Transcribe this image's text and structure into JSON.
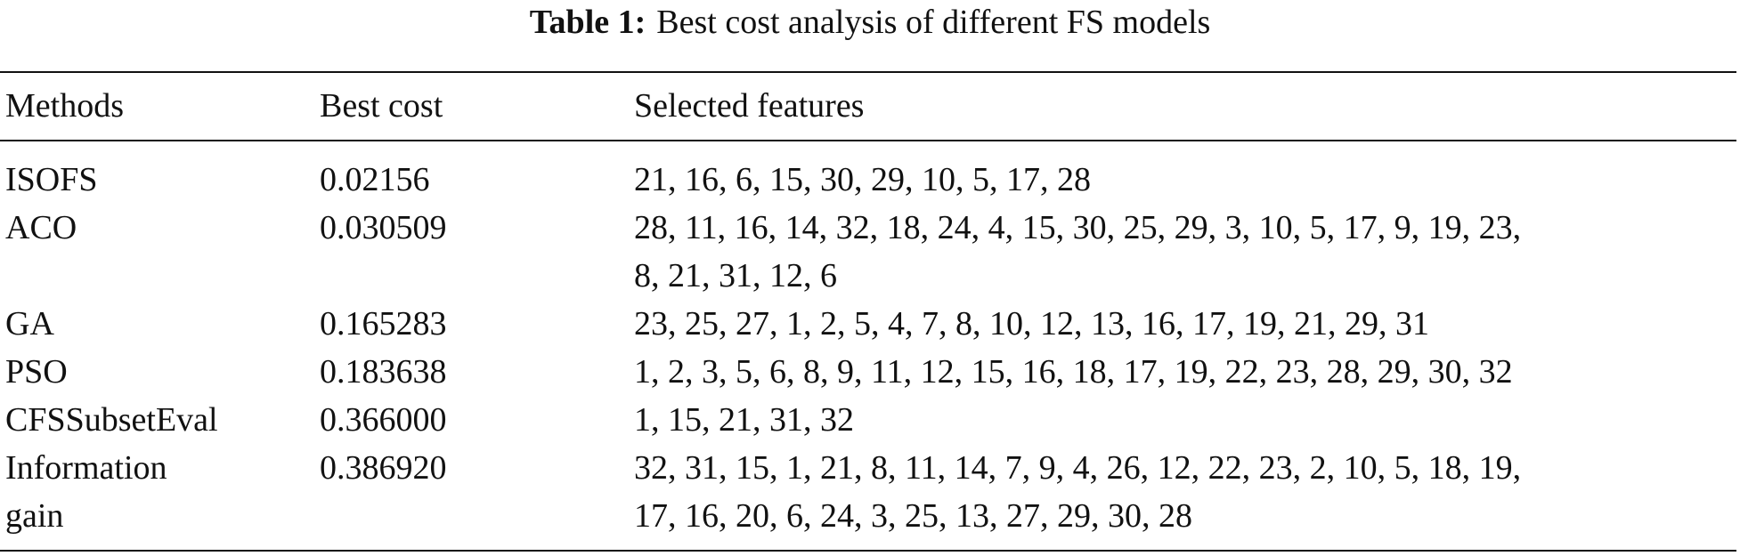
{
  "table": {
    "caption_label": "Table 1:",
    "caption": "Best cost analysis of different FS models",
    "header": [
      "Methods",
      "Best cost",
      "Selected features"
    ],
    "rows": [
      {
        "method": [
          "ISOFS"
        ],
        "best_cost": "0.02156",
        "features": [
          "21, 16, 6, 15, 30, 29, 10, 5, 17, 28"
        ]
      },
      {
        "method": [
          "ACO"
        ],
        "best_cost": "0.030509",
        "features": [
          "28, 11, 16, 14, 32, 18, 24, 4, 15, 30, 25, 29, 3, 10, 5, 17, 9, 19, 23,",
          "8, 21, 31, 12, 6"
        ]
      },
      {
        "method": [
          "GA"
        ],
        "best_cost": "0.165283",
        "features": [
          "23, 25, 27, 1, 2, 5, 4, 7, 8, 10, 12, 13, 16, 17, 19, 21, 29, 31"
        ]
      },
      {
        "method": [
          "PSO"
        ],
        "best_cost": "0.183638",
        "features": [
          "1, 2, 3, 5, 6, 8, 9, 11, 12, 15, 16, 18, 17, 19, 22, 23, 28, 29, 30, 32"
        ]
      },
      {
        "method": [
          "CFSSubsetEval"
        ],
        "best_cost": "0.366000",
        "features": [
          "1, 15, 21, 31, 32"
        ]
      },
      {
        "method": [
          "Information",
          "gain"
        ],
        "best_cost": "0.386920",
        "features": [
          "32, 31, 15, 1, 21, 8, 11, 14, 7, 9, 4, 26, 12, 22, 23, 2, 10, 5, 18, 19,",
          "17, 16, 20, 6, 24, 3, 25, 13, 27, 29, 30, 28"
        ]
      }
    ]
  }
}
